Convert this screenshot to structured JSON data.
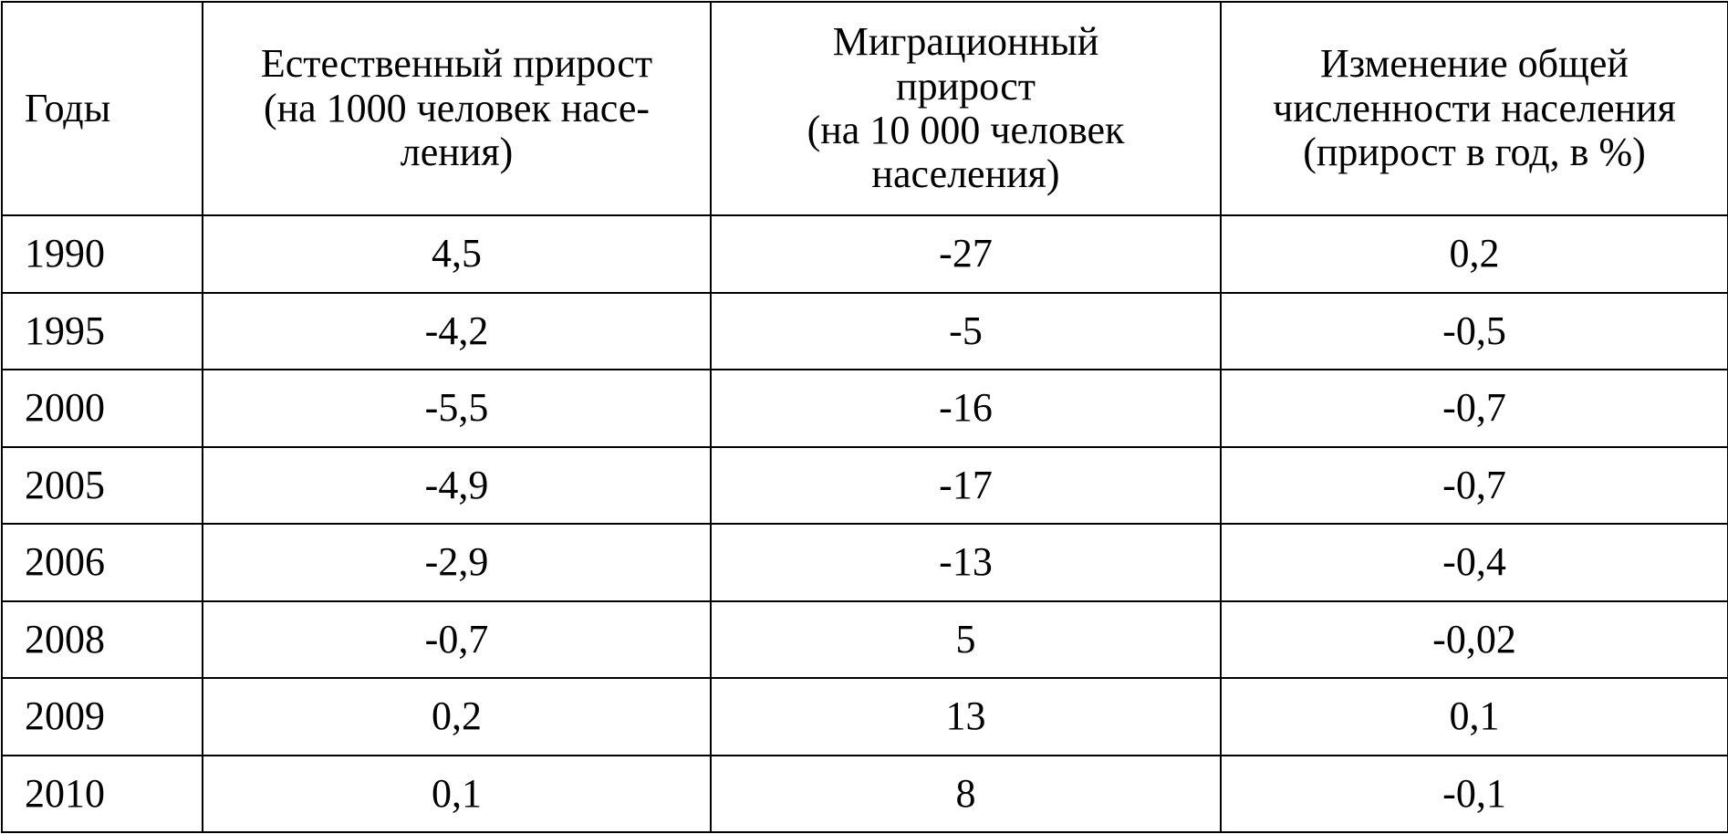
{
  "table": {
    "header": [
      [
        "Годы"
      ],
      [
        "Естественный прирост",
        "(на 1000 человек насе-",
        "ления)"
      ],
      [
        "Миграционный",
        "прирост",
        "(на 10 000 человек",
        "населения)"
      ],
      [
        "Изменение общей",
        "численности населения",
        "(прирост в год, в %)"
      ]
    ],
    "rows": [
      [
        "1990",
        "4,5",
        "-27",
        "0,2"
      ],
      [
        "1995",
        "-4,2",
        "-5",
        "-0,5"
      ],
      [
        "2000",
        "-5,5",
        "-16",
        "-0,7"
      ],
      [
        "2005",
        "-4,9",
        "-17",
        "-0,7"
      ],
      [
        "2006",
        "-2,9",
        "-13",
        "-0,4"
      ],
      [
        "2008",
        "-0,7",
        "5",
        "-0,02"
      ],
      [
        "2009",
        "0,2",
        "13",
        "0,1"
      ],
      [
        "2010",
        "0,1",
        "8",
        "-0,1"
      ]
    ]
  }
}
